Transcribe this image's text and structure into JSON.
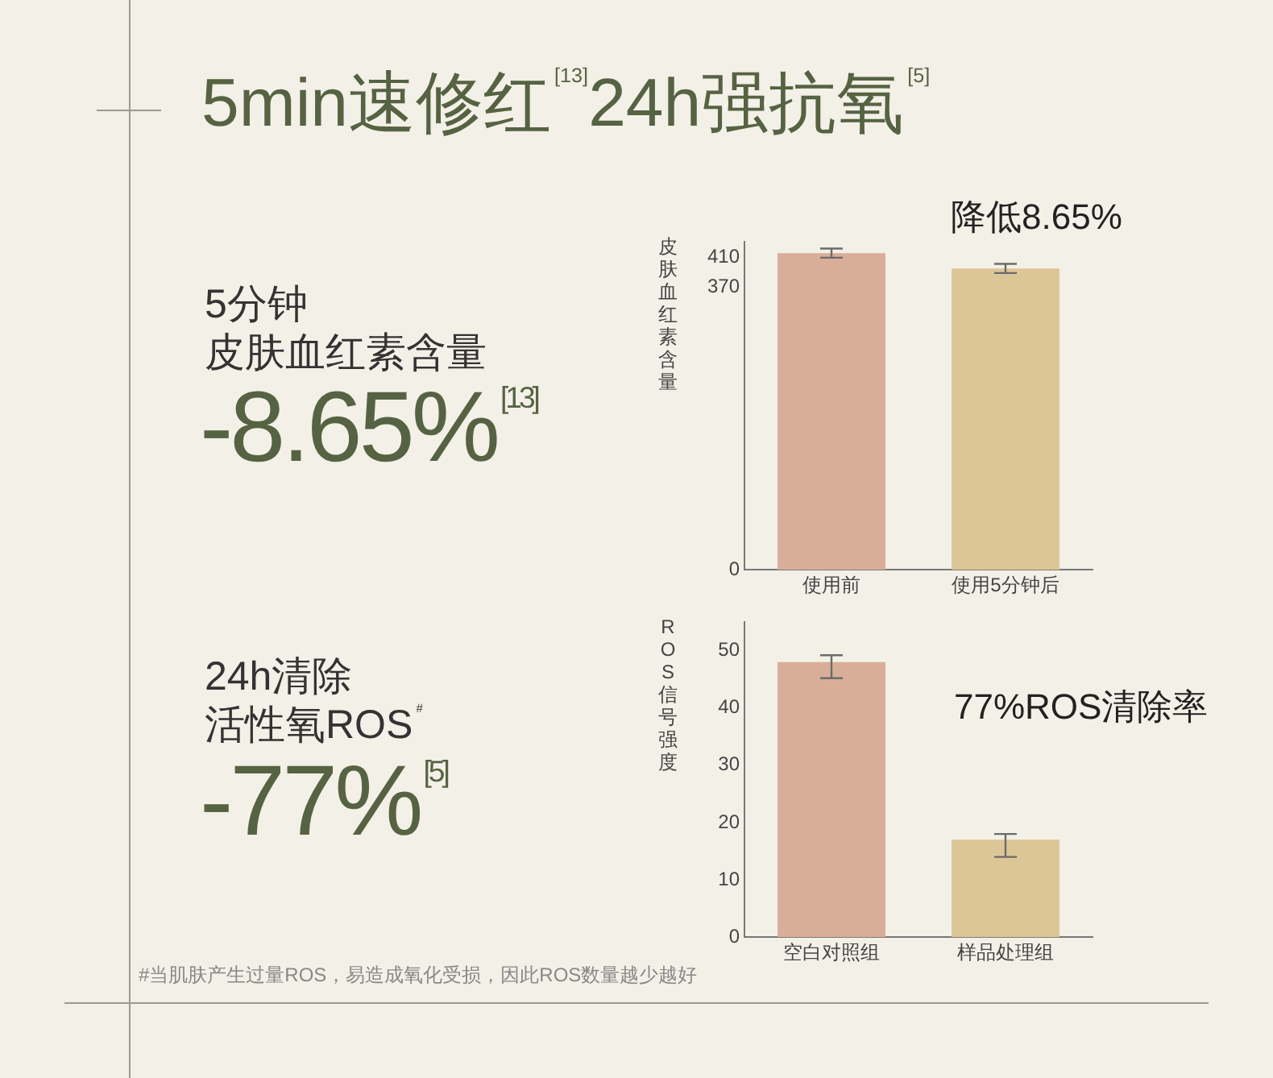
{
  "chart_data": [
    {
      "type": "other",
      "title": "5min速修红$^{[13]}$24h强抗氧$^{[5]}$",
      "annotations": [
        "5分钟",
        "皮肤血红素含量",
        "-8.65%$^{[13]}$",
        "24h清除",
        "活性氧ROS$^{#}$",
        "-77%$^{[5]}$",
        "#当肌肤产生过量ROS，易造成氧化受损，因此ROS数量越少越好"
      ]
    },
    {
      "type": "bar",
      "categories": [
        "使用前",
        "使用5分钟后"
      ],
      "values": [
        415,
        395
      ],
      "colors": [
        "#d9ae98",
        "#dcc697"
      ],
      "errors": [
        [
          409,
          421
        ],
        [
          389,
          401
        ]
      ],
      "ylabel": "皮肤血红素含量",
      "ylim": [
        0,
        430
      ],
      "yticks": [
        0,
        370,
        410
      ],
      "grid": false,
      "legend": false,
      "annotations": [
        "降低8.65%"
      ]
    },
    {
      "type": "bar",
      "categories": [
        "空白对照组",
        "样品处理组"
      ],
      "values": [
        48,
        17
      ],
      "colors": [
        "#d9ae98",
        "#dcc697"
      ],
      "errors": [
        [
          45.2,
          49.2
        ],
        [
          14,
          18
        ]
      ],
      "ylabel": "ROS信号强度",
      "ylim": [
        0,
        55
      ],
      "yticks": [
        0,
        10,
        20,
        30,
        40,
        50
      ],
      "grid": false,
      "legend": false,
      "annotations": [
        "77%ROS清除率"
      ]
    }
  ]
}
